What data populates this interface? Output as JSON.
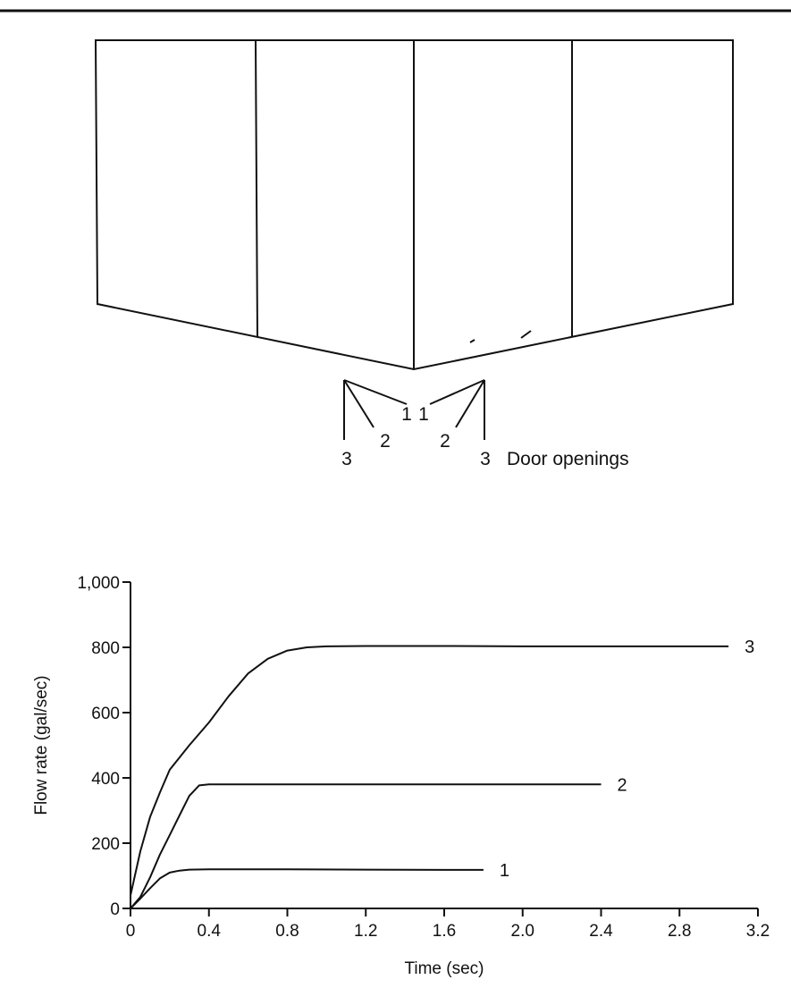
{
  "diagram": {
    "door_labels": [
      "3",
      "2",
      "1",
      "1",
      "2",
      "3"
    ],
    "caption": "Door openings"
  },
  "chart_data": {
    "type": "line",
    "xlabel": "Time (sec)",
    "ylabel": "Flow rate (gal/sec)",
    "xlim": [
      0,
      3.2
    ],
    "ylim": [
      0,
      1000
    ],
    "x_ticks": [
      "0",
      "0.4",
      "0.8",
      "1.2",
      "1.6",
      "2.0",
      "2.4",
      "2.8",
      "3.2"
    ],
    "y_ticks": [
      "0",
      "200",
      "400",
      "600",
      "800",
      "1,000"
    ],
    "grid": false,
    "series": [
      {
        "name": "1",
        "points": [
          [
            0,
            0
          ],
          [
            0.05,
            30
          ],
          [
            0.1,
            62
          ],
          [
            0.15,
            92
          ],
          [
            0.2,
            110
          ],
          [
            0.25,
            116
          ],
          [
            0.3,
            119
          ],
          [
            0.4,
            120
          ],
          [
            0.8,
            120
          ],
          [
            1.2,
            119
          ],
          [
            1.6,
            118
          ],
          [
            1.8,
            118
          ]
        ]
      },
      {
        "name": "2",
        "points": [
          [
            0,
            0
          ],
          [
            0.05,
            35
          ],
          [
            0.1,
            95
          ],
          [
            0.15,
            165
          ],
          [
            0.2,
            225
          ],
          [
            0.25,
            285
          ],
          [
            0.3,
            345
          ],
          [
            0.35,
            377
          ],
          [
            0.4,
            380
          ],
          [
            0.8,
            380
          ],
          [
            1.2,
            380
          ],
          [
            1.6,
            380
          ],
          [
            2.0,
            380
          ],
          [
            2.4,
            380
          ]
        ]
      },
      {
        "name": "3",
        "points": [
          [
            0,
            40
          ],
          [
            0.05,
            175
          ],
          [
            0.1,
            280
          ],
          [
            0.15,
            355
          ],
          [
            0.2,
            425
          ],
          [
            0.3,
            500
          ],
          [
            0.4,
            570
          ],
          [
            0.5,
            650
          ],
          [
            0.6,
            720
          ],
          [
            0.7,
            765
          ],
          [
            0.8,
            790
          ],
          [
            0.9,
            800
          ],
          [
            1.0,
            803
          ],
          [
            1.2,
            804
          ],
          [
            1.6,
            804
          ],
          [
            2.0,
            803
          ],
          [
            2.4,
            803
          ],
          [
            2.8,
            803
          ],
          [
            3.05,
            803
          ]
        ]
      }
    ]
  }
}
